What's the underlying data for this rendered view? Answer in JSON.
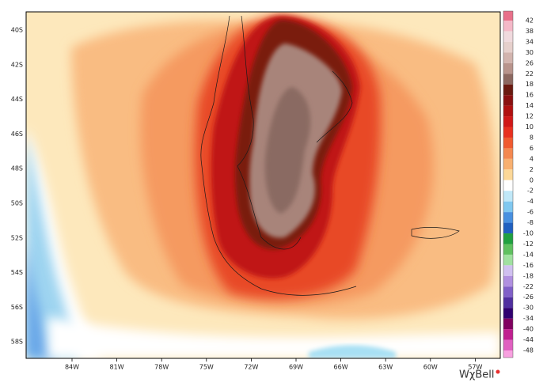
{
  "map": {
    "lat_labels": [
      "40S",
      "42S",
      "44S",
      "46S",
      "48S",
      "50S",
      "52S",
      "54S",
      "56S",
      "58S"
    ],
    "lon_labels": [
      "84W",
      "81W",
      "78W",
      "75W",
      "72W",
      "69W",
      "66W",
      "63W",
      "60W",
      "57W"
    ]
  },
  "colorbar": {
    "labels": [
      42,
      38,
      34,
      30,
      26,
      22,
      18,
      16,
      14,
      12,
      10,
      8,
      6,
      4,
      2,
      0,
      -2,
      -4,
      -6,
      -8,
      -10,
      -12,
      -14,
      -16,
      -18,
      -22,
      -26,
      -30,
      -34,
      -40,
      -44,
      -48
    ],
    "colors": [
      "#e8708a",
      "#f4b8c8",
      "#f0dade",
      "#e6d0cc",
      "#d2b4ae",
      "#b8948c",
      "#8c6860",
      "#6a1a10",
      "#8a1010",
      "#b01010",
      "#d01818",
      "#e83020",
      "#f05a30",
      "#f48850",
      "#f8b070",
      "#fcd898",
      "#ffffff",
      "#c0e8f8",
      "#80c8f0",
      "#4890e0",
      "#2060c0",
      "#20a040",
      "#60c060",
      "#a0e0a0",
      "#d0c0f0",
      "#b090e0",
      "#8060c8",
      "#5030a0",
      "#300070",
      "#800060",
      "#c02090",
      "#e060c0",
      "#f8a0e0"
    ]
  },
  "brand": "WχBell"
}
